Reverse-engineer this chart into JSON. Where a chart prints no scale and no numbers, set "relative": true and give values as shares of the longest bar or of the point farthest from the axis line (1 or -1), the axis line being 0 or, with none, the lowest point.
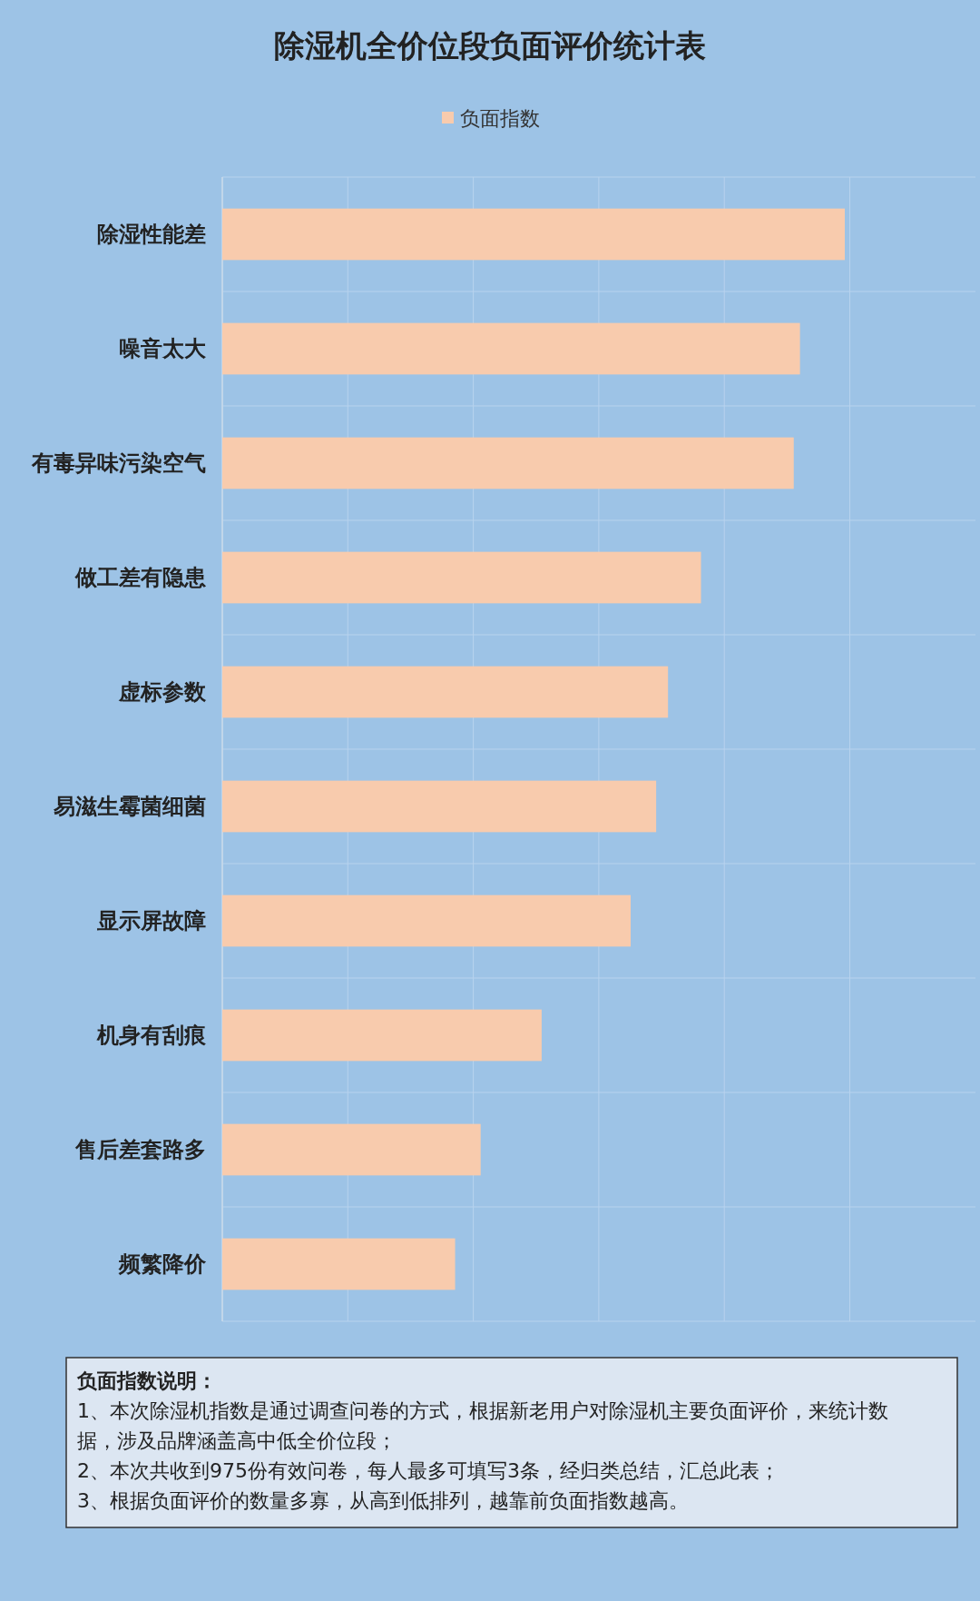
{
  "chart_data": {
    "type": "bar",
    "orientation": "horizontal",
    "relative": true,
    "title": "除湿机全价位段负面评价统计表",
    "categories": [
      "除湿性能差",
      "噪音太大",
      "有毒异味污染空气",
      "做工差有隐患",
      "虚标参数",
      "易滋生霉菌细菌",
      "显示屏故障",
      "机身有刮痕",
      "售后差套路多",
      "频繁降价"
    ],
    "series": [
      {
        "name": "负面指数",
        "color": "#f8cbad",
        "values": [
          1,
          0.928,
          0.918,
          0.769,
          0.716,
          0.697,
          0.656,
          0.513,
          0.415,
          0.374
        ]
      }
    ],
    "legend": "top",
    "grid": true,
    "annotations": [
      "负面指数说明：",
      "1、本次除湿机指数是通过调查问卷的方式，根据新老用户对除湿机主要负面评价，来统计数据，涉及品牌涵盖高中低全价位段；",
      "2、本次共收到975份有效问卷，每人最多可填写3条，经归类总结，汇总此表；",
      "3、根据负面评价的数量多寡，从高到低排列，越靠前负面指数越高。"
    ]
  }
}
